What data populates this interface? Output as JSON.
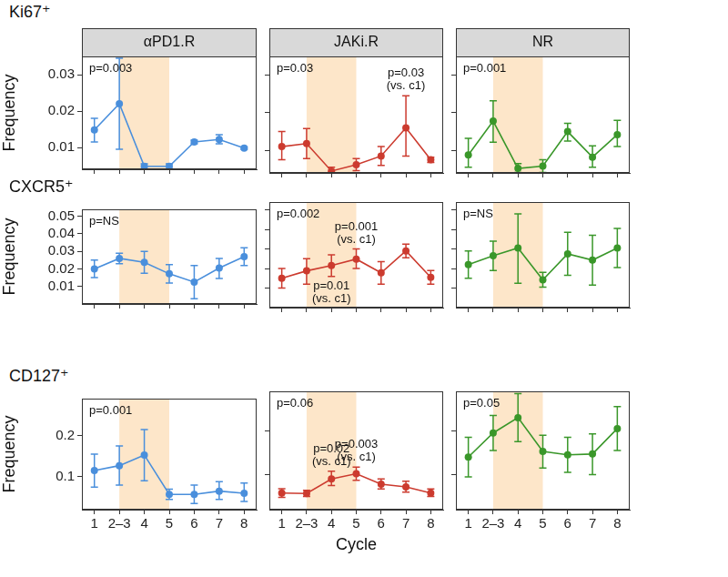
{
  "chart_data": [
    {
      "type": "line",
      "subtitle": "Ki67⁺",
      "title": "αPD1.R",
      "y_label": "Frequency",
      "categories": [
        "1",
        "2–3",
        "4",
        "5",
        "6",
        "7",
        "8"
      ],
      "values": [
        0.0148,
        0.022,
        0.0048,
        0.0048,
        0.0115,
        0.0122,
        0.0098
      ],
      "error_low": [
        0.0115,
        0.0095,
        0.0041,
        0.0041,
        0.011,
        0.011,
        0.0095
      ],
      "error_high": [
        0.018,
        0.0345,
        0.0055,
        0.0055,
        0.012,
        0.0135,
        0.0101
      ],
      "color": "#4a8fdc",
      "ylim": [
        0.004,
        0.035
      ],
      "yticks": [
        0.01,
        0.02,
        0.03
      ],
      "shade": [
        "2–3",
        "5"
      ],
      "grid": false,
      "tick_labels": "y",
      "annotations": [
        {
          "text": "p=0.003",
          "position": "top-left"
        }
      ]
    },
    {
      "type": "line",
      "title": "JAKi.R",
      "categories": [
        "1",
        "2–3",
        "4",
        "5",
        "6",
        "7",
        "8"
      ],
      "values": [
        0.011,
        0.0118,
        0.0045,
        0.0062,
        0.0085,
        0.016,
        0.0075
      ],
      "error_low": [
        0.0075,
        0.0078,
        0.0041,
        0.0046,
        0.006,
        0.0085,
        0.0068
      ],
      "error_high": [
        0.015,
        0.0158,
        0.0055,
        0.0078,
        0.011,
        0.0245,
        0.0082
      ],
      "color": "#cc3b2f",
      "ylim": [
        0.004,
        0.035
      ],
      "yticks": [
        0.01,
        0.02,
        0.03
      ],
      "shade": [
        "2–3",
        "5"
      ],
      "grid": false,
      "tick_labels": false,
      "annotations": [
        {
          "text": "p=0.03",
          "position": "top-left"
        },
        {
          "text": [
            "p=0.03",
            "(vs. c1)"
          ],
          "x": "7",
          "position": "above"
        }
      ]
    },
    {
      "type": "line",
      "title": "NR",
      "categories": [
        "1",
        "2–3",
        "4",
        "5",
        "6",
        "7",
        "8"
      ],
      "values": [
        0.0088,
        0.0178,
        0.0052,
        0.0058,
        0.015,
        0.0082,
        0.0142
      ],
      "error_low": [
        0.0055,
        0.0122,
        0.0041,
        0.0041,
        0.0125,
        0.0055,
        0.011
      ],
      "error_high": [
        0.0132,
        0.0232,
        0.0065,
        0.0075,
        0.0172,
        0.0112,
        0.018
      ],
      "color": "#3a972a",
      "ylim": [
        0.004,
        0.035
      ],
      "yticks": [
        0.01,
        0.02,
        0.03
      ],
      "shade": [
        "2–3",
        "5"
      ],
      "grid": false,
      "tick_labels": false,
      "annotations": [
        {
          "text": "p=0.001",
          "position": "top-left"
        }
      ]
    },
    {
      "type": "line",
      "subtitle": "CXCR5⁺",
      "y_label": "Frequency",
      "categories": [
        "1",
        "2–3",
        "4",
        "5",
        "6",
        "7",
        "8"
      ],
      "values": [
        0.02,
        0.026,
        0.0238,
        0.0172,
        0.0125,
        0.0205,
        0.027
      ],
      "error_low": [
        0.015,
        0.023,
        0.0175,
        0.012,
        0.003,
        0.0145,
        0.022
      ],
      "error_high": [
        0.025,
        0.029,
        0.03,
        0.0225,
        0.022,
        0.026,
        0.032
      ],
      "color": "#4a8fdc",
      "ylim": [
        0,
        0.054
      ],
      "yticks": [
        0.01,
        0.02,
        0.03,
        0.04,
        0.05
      ],
      "shade": [
        "2–3",
        "5"
      ],
      "grid": false,
      "tick_labels": "y",
      "annotations": [
        {
          "text": "p=NS",
          "position": "top-left"
        }
      ]
    },
    {
      "type": "line",
      "categories": [
        "1",
        "2–3",
        "4",
        "5",
        "6",
        "7",
        "8"
      ],
      "values": [
        0.015,
        0.0188,
        0.0215,
        0.0248,
        0.0178,
        0.029,
        0.0155
      ],
      "error_low": [
        0.01,
        0.012,
        0.016,
        0.02,
        0.012,
        0.0255,
        0.012
      ],
      "error_high": [
        0.02,
        0.025,
        0.027,
        0.03,
        0.0235,
        0.0325,
        0.019
      ],
      "color": "#cc3b2f",
      "ylim": [
        0,
        0.054
      ],
      "yticks": [
        0.01,
        0.02,
        0.03,
        0.04,
        0.05
      ],
      "shade": [
        "2–3",
        "5"
      ],
      "grid": false,
      "tick_labels": false,
      "annotations": [
        {
          "text": "p=0.002",
          "position": "top-left"
        },
        {
          "text": [
            "p=0.001",
            "(vs. c1)"
          ],
          "x": "5",
          "position": "above"
        },
        {
          "text": [
            "p=0.01",
            "(vs. c1)"
          ],
          "x": "4",
          "position": "below"
        }
      ]
    },
    {
      "type": "line",
      "categories": [
        "1",
        "2–3",
        "4",
        "5",
        "6",
        "7",
        "8"
      ],
      "values": [
        0.022,
        0.0265,
        0.0305,
        0.0142,
        0.0275,
        0.0243,
        0.0305
      ],
      "error_low": [
        0.015,
        0.019,
        0.0125,
        0.0105,
        0.0165,
        0.0115,
        0.0205
      ],
      "error_high": [
        0.029,
        0.034,
        0.048,
        0.018,
        0.0385,
        0.037,
        0.0405
      ],
      "color": "#3a972a",
      "ylim": [
        0,
        0.054
      ],
      "yticks": [
        0.01,
        0.02,
        0.03,
        0.04,
        0.05
      ],
      "shade": [
        "2–3",
        "5"
      ],
      "grid": false,
      "tick_labels": false,
      "annotations": [
        {
          "text": "p=NS",
          "position": "top-left"
        }
      ]
    },
    {
      "type": "line",
      "subtitle": "CD127⁺",
      "y_label": "Frequency",
      "categories": [
        "1",
        "2–3",
        "4",
        "5",
        "6",
        "7",
        "8"
      ],
      "values": [
        0.115,
        0.127,
        0.153,
        0.057,
        0.057,
        0.065,
        0.06
      ],
      "error_low": [
        0.075,
        0.08,
        0.09,
        0.045,
        0.035,
        0.045,
        0.04
      ],
      "error_high": [
        0.155,
        0.175,
        0.215,
        0.07,
        0.08,
        0.088,
        0.085
      ],
      "color": "#4a8fdc",
      "ylim": [
        0.02,
        0.29
      ],
      "yticks": [
        0.1,
        0.2
      ],
      "shade": [
        "2–3",
        "5"
      ],
      "grid": false,
      "tick_labels": true,
      "annotations": [
        {
          "text": "p=0.001",
          "position": "top-left"
        }
      ]
    },
    {
      "type": "line",
      "x_label": "Cycle",
      "categories": [
        "1",
        "2–3",
        "4",
        "5",
        "6",
        "7",
        "8"
      ],
      "values": [
        0.058,
        0.057,
        0.09,
        0.102,
        0.078,
        0.072,
        0.058
      ],
      "error_low": [
        0.048,
        0.05,
        0.075,
        0.087,
        0.067,
        0.06,
        0.05
      ],
      "error_high": [
        0.068,
        0.064,
        0.108,
        0.117,
        0.09,
        0.085,
        0.067
      ],
      "color": "#cc3b2f",
      "ylim": [
        0.02,
        0.29
      ],
      "yticks": [
        0.1,
        0.2
      ],
      "shade": [
        "2–3",
        "5"
      ],
      "grid": false,
      "tick_labels": "x",
      "annotations": [
        {
          "text": "p=0.06",
          "position": "top-left"
        },
        {
          "text": [
            "p=0.02",
            "(vs. c1)"
          ],
          "x": "4",
          "position": "above"
        },
        {
          "text": [
            "p=0.003",
            "(vs. c1)"
          ],
          "x": "5",
          "position": "above"
        }
      ]
    },
    {
      "type": "line",
      "categories": [
        "1",
        "2–3",
        "4",
        "5",
        "6",
        "7",
        "8"
      ],
      "values": [
        0.14,
        0.195,
        0.23,
        0.153,
        0.145,
        0.147,
        0.205
      ],
      "error_low": [
        0.095,
        0.155,
        0.175,
        0.115,
        0.105,
        0.1,
        0.155
      ],
      "error_high": [
        0.185,
        0.235,
        0.285,
        0.19,
        0.185,
        0.193,
        0.255
      ],
      "color": "#3a972a",
      "ylim": [
        0.02,
        0.29
      ],
      "yticks": [
        0.1,
        0.2
      ],
      "shade": [
        "2–3",
        "5"
      ],
      "grid": false,
      "tick_labels": "x",
      "annotations": [
        {
          "text": "p=0.05",
          "position": "top-left"
        }
      ]
    }
  ]
}
